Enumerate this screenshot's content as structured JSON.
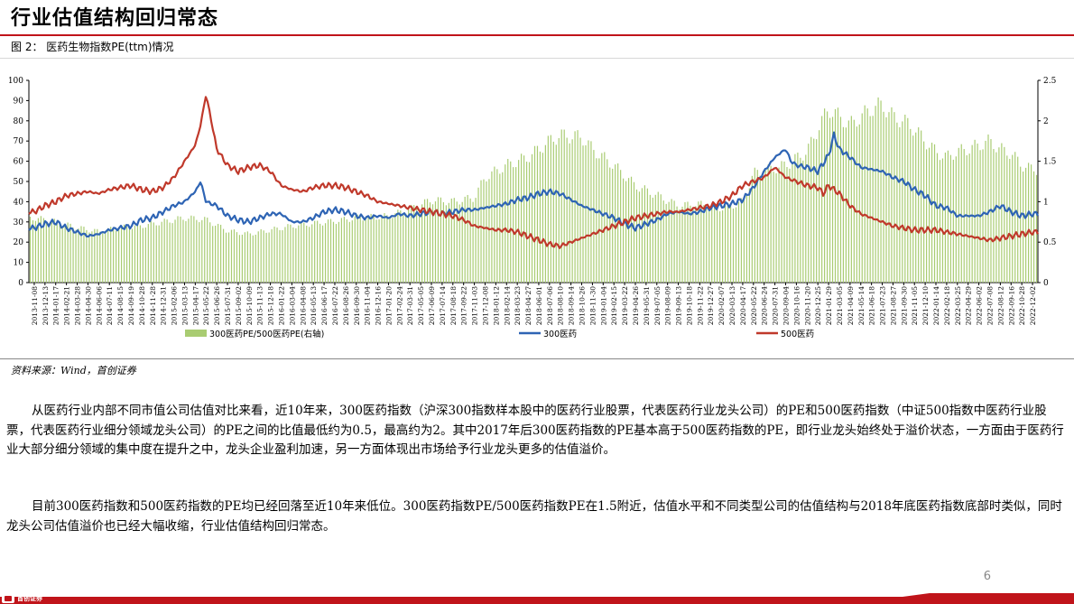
{
  "header": {
    "title": "行业估值结构回归常态",
    "figure_caption": "图 2： 医药生物指数PE(ttm)情况"
  },
  "chart_data": {
    "type": "line",
    "y_left": {
      "min": 0,
      "max": 100,
      "ticks": [
        0,
        10,
        20,
        30,
        40,
        50,
        60,
        70,
        80,
        90,
        100
      ]
    },
    "y_right": {
      "min": 0,
      "max": 2.5,
      "ticks": [
        "0",
        "0.5",
        "1",
        "1.5",
        "2",
        "2.5"
      ]
    },
    "x_tick_labels": [
      "2013-11-08",
      "2013-12-13",
      "2014-01-17",
      "2014-02-21",
      "2014-03-28",
      "2014-04-30",
      "2014-06-06",
      "2014-07-11",
      "2014-08-15",
      "2014-09-19",
      "2014-10-28",
      "2014-11-28",
      "2014-12-31",
      "2015-02-06",
      "2015-03-13",
      "2015-04-17",
      "2015-05-22",
      "2015-06-26",
      "2015-07-31",
      "2015-09-02",
      "2015-10-09",
      "2015-11-13",
      "2015-12-18",
      "2016-01-22",
      "2016-03-04",
      "2016-04-08",
      "2016-05-13",
      "2016-06-17",
      "2016-07-22",
      "2016-08-26",
      "2016-09-30",
      "2016-11-04",
      "2016-12-16",
      "2017-01-20",
      "2017-02-24",
      "2017-03-31",
      "2017-05-05",
      "2017-06-09",
      "2017-07-14",
      "2017-08-18",
      "2017-09-22",
      "2017-11-03",
      "2017-12-08",
      "2018-01-12",
      "2018-02-14",
      "2018-03-23",
      "2018-04-27",
      "2018-06-01",
      "2018-07-06",
      "2018-08-10",
      "2018-09-14",
      "2018-10-26",
      "2018-11-30",
      "2019-01-04",
      "2019-02-15",
      "2019-03-22",
      "2019-04-26",
      "2019-05-31",
      "2019-07-05",
      "2019-08-09",
      "2019-09-13",
      "2019-10-18",
      "2019-11-22",
      "2019-12-27",
      "2020-02-07",
      "2020-03-13",
      "2020-04-17",
      "2020-05-22",
      "2020-06-24",
      "2020-07-31",
      "2020-09-04",
      "2020-10-16",
      "2020-11-20",
      "2020-12-25",
      "2021-01-29",
      "2021-03-05",
      "2021-04-09",
      "2021-05-14",
      "2021-06-18",
      "2021-07-23",
      "2021-08-27",
      "2021-09-30",
      "2021-11-05",
      "2021-12-10",
      "2022-01-14",
      "2022-02-18",
      "2022-03-25",
      "2022-04-29",
      "2022-06-02",
      "2022-07-08",
      "2022-08-12",
      "2022-09-16",
      "2022-10-28",
      "2022-12-02"
    ],
    "series": [
      {
        "name": "300医药PE/500医药PE(右轴)",
        "kind": "bar",
        "axis": "right",
        "color": "#a9cc72",
        "points": [
          [
            0,
            0.8
          ],
          [
            2,
            0.75
          ],
          [
            4,
            0.68
          ],
          [
            6,
            0.63
          ],
          [
            8,
            0.68
          ],
          [
            10,
            0.7
          ],
          [
            12,
            0.75
          ],
          [
            14,
            0.8
          ],
          [
            16,
            0.78
          ],
          [
            18,
            0.64
          ],
          [
            20,
            0.6
          ],
          [
            22,
            0.65
          ],
          [
            24,
            0.7
          ],
          [
            28,
            0.76
          ],
          [
            30,
            0.8
          ],
          [
            33,
            0.82
          ],
          [
            35,
            0.91
          ],
          [
            37,
            1.02
          ],
          [
            39,
            1.0
          ],
          [
            41,
            1.05
          ],
          [
            42,
            1.3
          ],
          [
            44,
            1.45
          ],
          [
            46,
            1.55
          ],
          [
            48,
            1.75
          ],
          [
            49,
            1.82
          ],
          [
            51,
            1.8
          ],
          [
            52,
            1.65
          ],
          [
            54,
            1.45
          ],
          [
            56,
            1.2
          ],
          [
            58,
            1.08
          ],
          [
            60,
            0.95
          ],
          [
            62,
            0.97
          ],
          [
            64,
            0.92
          ],
          [
            65,
            0.95
          ],
          [
            66,
            1.0
          ],
          [
            67,
            1.35
          ],
          [
            68,
            1.38
          ],
          [
            70,
            1.45
          ],
          [
            72,
            1.62
          ],
          [
            73,
            1.9
          ],
          [
            74,
            2.15
          ],
          [
            75,
            2.05
          ],
          [
            76,
            1.95
          ],
          [
            78,
            2.15
          ],
          [
            79,
            2.2
          ],
          [
            80,
            2.05
          ],
          [
            81,
            2.0
          ],
          [
            82,
            1.9
          ],
          [
            83,
            1.75
          ],
          [
            84,
            1.62
          ],
          [
            85,
            1.55
          ],
          [
            86,
            1.62
          ],
          [
            87,
            1.65
          ],
          [
            88,
            1.7
          ],
          [
            89,
            1.75
          ],
          [
            90,
            1.65
          ],
          [
            91,
            1.6
          ],
          [
            92,
            1.45
          ],
          [
            93,
            1.4
          ]
        ]
      },
      {
        "name": "300医药",
        "kind": "line",
        "axis": "left",
        "color": "#2e64b4",
        "points": [
          [
            0,
            27
          ],
          [
            1,
            29
          ],
          [
            2,
            30
          ],
          [
            3,
            27
          ],
          [
            4,
            25
          ],
          [
            5,
            23
          ],
          [
            6,
            24
          ],
          [
            7,
            26
          ],
          [
            8,
            27
          ],
          [
            9,
            28
          ],
          [
            10,
            31
          ],
          [
            11,
            32
          ],
          [
            12,
            35
          ],
          [
            13,
            38
          ],
          [
            14,
            40
          ],
          [
            15,
            45
          ],
          [
            15.5,
            50
          ],
          [
            16,
            40
          ],
          [
            17,
            38
          ],
          [
            18,
            33
          ],
          [
            19,
            31
          ],
          [
            20,
            30
          ],
          [
            21,
            32
          ],
          [
            22,
            34
          ],
          [
            23,
            34
          ],
          [
            24,
            30
          ],
          [
            25,
            30
          ],
          [
            26,
            32
          ],
          [
            27,
            35
          ],
          [
            28,
            36
          ],
          [
            29,
            35
          ],
          [
            30,
            33
          ],
          [
            31,
            32
          ],
          [
            32,
            33
          ],
          [
            33,
            32
          ],
          [
            34,
            34
          ],
          [
            35,
            33
          ],
          [
            36,
            34
          ],
          [
            37,
            35
          ],
          [
            38,
            34
          ],
          [
            39,
            35
          ],
          [
            40,
            36
          ],
          [
            41,
            36
          ],
          [
            42,
            37
          ],
          [
            43,
            38
          ],
          [
            44,
            39
          ],
          [
            45,
            41
          ],
          [
            46,
            42
          ],
          [
            47,
            44
          ],
          [
            48,
            45
          ],
          [
            49,
            44
          ],
          [
            50,
            41
          ],
          [
            51,
            38
          ],
          [
            52,
            36
          ],
          [
            53,
            34
          ],
          [
            54,
            32
          ],
          [
            55,
            29
          ],
          [
            56,
            27
          ],
          [
            57,
            29
          ],
          [
            58,
            31
          ],
          [
            59,
            34
          ],
          [
            60,
            35
          ],
          [
            61,
            34
          ],
          [
            62,
            35
          ],
          [
            63,
            37
          ],
          [
            64,
            38
          ],
          [
            65,
            39
          ],
          [
            66,
            41
          ],
          [
            67,
            47
          ],
          [
            68,
            55
          ],
          [
            69,
            62
          ],
          [
            70,
            66
          ],
          [
            70.5,
            60
          ],
          [
            71,
            58
          ],
          [
            72,
            57
          ],
          [
            73,
            55
          ],
          [
            74,
            63
          ],
          [
            74.5,
            73
          ],
          [
            75,
            66
          ],
          [
            76,
            62
          ],
          [
            77,
            57
          ],
          [
            78,
            56
          ],
          [
            79,
            55
          ],
          [
            80,
            52
          ],
          [
            81,
            50
          ],
          [
            82,
            46
          ],
          [
            83,
            43
          ],
          [
            84,
            38
          ],
          [
            85,
            37
          ],
          [
            86,
            33
          ],
          [
            87,
            33
          ],
          [
            88,
            33
          ],
          [
            89,
            35
          ],
          [
            90,
            38
          ],
          [
            91,
            35
          ],
          [
            92,
            33
          ],
          [
            93,
            34
          ]
        ]
      },
      {
        "name": "500医药",
        "kind": "line",
        "axis": "left",
        "color": "#c0392b",
        "points": [
          [
            0,
            35
          ],
          [
            1,
            38
          ],
          [
            2,
            40
          ],
          [
            3,
            43
          ],
          [
            4,
            44
          ],
          [
            5,
            45
          ],
          [
            6,
            44
          ],
          [
            7,
            46
          ],
          [
            8,
            47
          ],
          [
            9,
            48
          ],
          [
            10,
            46
          ],
          [
            11,
            45
          ],
          [
            12,
            47
          ],
          [
            13,
            52
          ],
          [
            14,
            60
          ],
          [
            15,
            68
          ],
          [
            15.5,
            78
          ],
          [
            16,
            93
          ],
          [
            16.5,
            80
          ],
          [
            17,
            66
          ],
          [
            18,
            58
          ],
          [
            19,
            55
          ],
          [
            20,
            57
          ],
          [
            21,
            58
          ],
          [
            22,
            55
          ],
          [
            23,
            48
          ],
          [
            24,
            46
          ],
          [
            25,
            45
          ],
          [
            26,
            47
          ],
          [
            27,
            48
          ],
          [
            28,
            48
          ],
          [
            29,
            47
          ],
          [
            30,
            45
          ],
          [
            31,
            43
          ],
          [
            32,
            40
          ],
          [
            33,
            39
          ],
          [
            34,
            38
          ],
          [
            35,
            37
          ],
          [
            36,
            36
          ],
          [
            37,
            35
          ],
          [
            38,
            34
          ],
          [
            39,
            33
          ],
          [
            40,
            31
          ],
          [
            41,
            28
          ],
          [
            42,
            27
          ],
          [
            43,
            26
          ],
          [
            44,
            26
          ],
          [
            45,
            25
          ],
          [
            46,
            23
          ],
          [
            47,
            21
          ],
          [
            48,
            19
          ],
          [
            49,
            18
          ],
          [
            50,
            20
          ],
          [
            51,
            22
          ],
          [
            52,
            24
          ],
          [
            53,
            26
          ],
          [
            54,
            28
          ],
          [
            55,
            30
          ],
          [
            56,
            32
          ],
          [
            57,
            33
          ],
          [
            58,
            34
          ],
          [
            59,
            35
          ],
          [
            60,
            35
          ],
          [
            61,
            36
          ],
          [
            62,
            37
          ],
          [
            63,
            38
          ],
          [
            64,
            40
          ],
          [
            65,
            43
          ],
          [
            66,
            48
          ],
          [
            67,
            50
          ],
          [
            68,
            52
          ],
          [
            69,
            57
          ],
          [
            70,
            52
          ],
          [
            71,
            50
          ],
          [
            72,
            48
          ],
          [
            73,
            47
          ],
          [
            73.5,
            44
          ],
          [
            74,
            48
          ],
          [
            75,
            44
          ],
          [
            76,
            38
          ],
          [
            77,
            34
          ],
          [
            78,
            32
          ],
          [
            79,
            30
          ],
          [
            80,
            28
          ],
          [
            81,
            27
          ],
          [
            82,
            26
          ],
          [
            83,
            26
          ],
          [
            84,
            26
          ],
          [
            85,
            25
          ],
          [
            86,
            24
          ],
          [
            87,
            23
          ],
          [
            88,
            22
          ],
          [
            89,
            21
          ],
          [
            90,
            22
          ],
          [
            91,
            23
          ],
          [
            92,
            24
          ],
          [
            93,
            25
          ]
        ]
      }
    ]
  },
  "source": "资料来源：Wind，首创证券",
  "paragraphs": [
    "从医药行业内部不同市值公司估值对比来看，近10年来，300医药指数（沪深300指数样本股中的医药行业股票，代表医药行业龙头公司）的PE和500医药指数（中证500指数中医药行业股票，代表医药行业细分领域龙头公司）的PE之间的比值最低约为0.5，最高约为2。其中2017年后300医药指数的PE基本高于500医药指数的PE，即行业龙头始终处于溢价状态，一方面由于医药行业大部分细分领域的集中度在提升之中，龙头企业盈利加速，另一方面体现出市场给予行业龙头更多的估值溢价。",
    "目前300医药指数和500医药指数的PE均已经回落至近10年来低位。300医药指数PE/500医药指数PE在1.5附近，估值水平和不同类型公司的估值结构与2018年底医药指数底部时类似，同时龙头公司估值溢价也已经大幅收缩，行业估值结构回归常态。"
  ],
  "footer": {
    "page_number": "6",
    "logo_text": "首创证券",
    "brand_color": "#c0141a"
  }
}
